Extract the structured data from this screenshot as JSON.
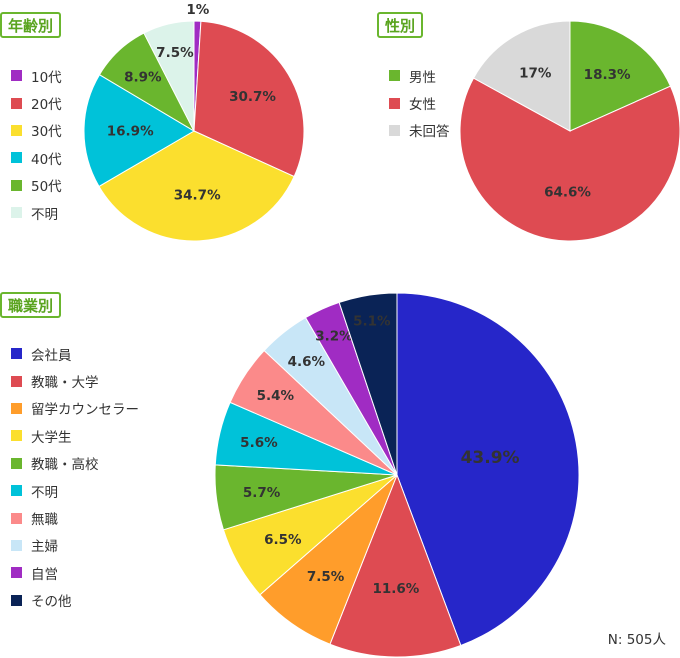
{
  "charts": {
    "age": {
      "tag": "年齢別"
    },
    "gender": {
      "tag": "性別"
    },
    "job": {
      "tag": "職業別"
    }
  },
  "sample_size": "N: 505人",
  "chart_data": [
    {
      "type": "pie",
      "title": "年齢別",
      "categories": [
        "10代",
        "20代",
        "30代",
        "40代",
        "50代",
        "不明"
      ],
      "values": [
        1,
        30.7,
        34.7,
        16.9,
        8.9,
        7.5
      ],
      "labels": [
        "1%",
        "30.7%",
        "34.7%",
        "16.9%",
        "8.9%",
        "7.5%"
      ],
      "colors": [
        "#a02cc3",
        "#de4b52",
        "#fbdf2e",
        "#00c2d9",
        "#6ab62e",
        "#dcf3ea"
      ],
      "legend": "left"
    },
    {
      "type": "pie",
      "title": "性別",
      "categories": [
        "男性",
        "女性",
        "未回答"
      ],
      "values": [
        18.3,
        64.6,
        17
      ],
      "labels": [
        "18.3%",
        "64.6%",
        "17%"
      ],
      "colors": [
        "#6ab62e",
        "#de4b52",
        "#d9d9d9"
      ],
      "legend": "left"
    },
    {
      "type": "pie",
      "title": "職業別",
      "categories": [
        "会社員",
        "教職・大学",
        "留学カウンセラー",
        "大学生",
        "教職・高校",
        "不明",
        "無職",
        "主婦",
        "自営",
        "その他"
      ],
      "values": [
        43.9,
        11.6,
        7.5,
        6.5,
        5.7,
        5.6,
        5.4,
        4.6,
        3.2,
        5.1
      ],
      "labels": [
        "43.9%",
        "11.6%",
        "7.5%",
        "6.5%",
        "5.7%",
        "5.6%",
        "5.4%",
        "4.6%",
        "3.2%",
        "5.1%"
      ],
      "colors": [
        "#2626c9",
        "#de4b52",
        "#ff9d2b",
        "#fbdf2e",
        "#6ab62e",
        "#00c2d9",
        "#fb8a8a",
        "#c8e6f7",
        "#a02cc3",
        "#0a2356"
      ],
      "legend": "left"
    }
  ]
}
